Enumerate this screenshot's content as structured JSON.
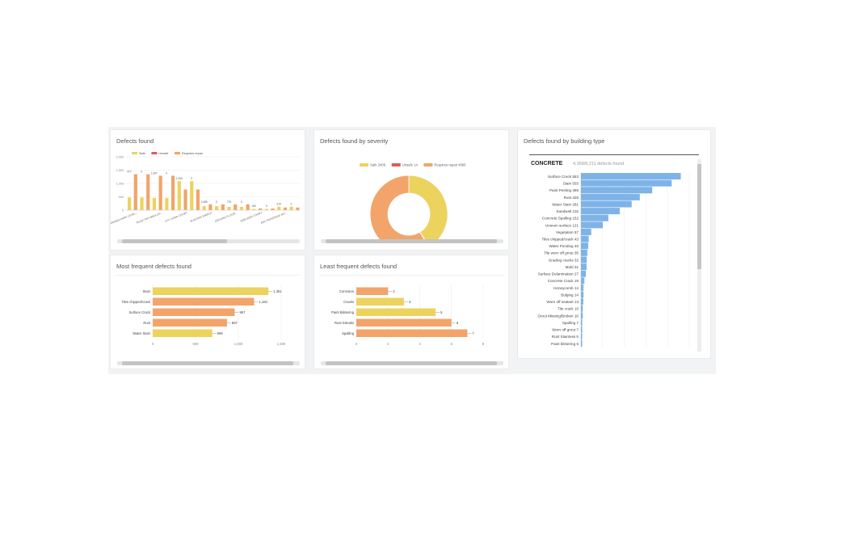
{
  "cards": {
    "defects": {
      "title": "Defects found",
      "legend": [
        "Safe",
        "Unsafe",
        "Requires repair"
      ],
      "chart_data": {
        "type": "bar",
        "title": "Defects found",
        "legend_position": "top",
        "ylim": [
          0,
          2000
        ],
        "yticks": [
          "2,000",
          "1,500",
          "1,000",
          "500",
          "0"
        ],
        "categories": [
          "VIRGINIA PARK LEVEL...",
          "ROOFTOP AREA GA...",
          "KTC STAIR COURT",
          "BUILDING B/WEST",
          "GROUND FLOOR...",
          "ADELAIDE COURT",
          "AMC RIVERSIDE MO..."
        ],
        "series": [
          {
            "name": "Safe",
            "color": "#ecd35d",
            "values": [
              477,
              460,
              1089,
              150,
              124,
              43,
              129
            ]
          },
          {
            "name": "Unsafe",
            "color": "#de5a5a",
            "values": [
              0,
              0,
              0,
              0,
              0,
              0,
              0
            ]
          },
          {
            "name": "Requires repair",
            "color": "#f2a46a",
            "values": [
              1347,
              1290,
              775,
              214,
              218,
              62,
              97
            ]
          }
        ],
        "data_labels": [
          "477",
          "0",
          "1,347",
          "0",
          "1,290",
          "0",
          "1,089",
          "0",
          "775",
          "0",
          "150",
          "0",
          "214",
          "0",
          "124",
          "0",
          "218",
          "0",
          "43",
          "0",
          "62",
          "0",
          "129",
          "0",
          "97",
          "0"
        ]
      }
    },
    "severity": {
      "title": "Defects found by severity",
      "legend": [
        "Safe 3406",
        "Unsafe 14",
        "Requires repair 4865"
      ],
      "chart_data": {
        "type": "pie",
        "title": "Defects found by severity",
        "legend_position": "top",
        "categories": [
          "Safe",
          "Unsafe",
          "Requires repair"
        ],
        "values": [
          3406,
          14,
          4865
        ],
        "colors": [
          "#ecd35d",
          "#de5a5a",
          "#f2a46a"
        ]
      }
    },
    "building": {
      "title": "Defects found by building type",
      "type_name": "CONCRETE",
      "subtitle": "4,368/8,211 defects found",
      "chart_data": {
        "type": "bar",
        "orientation": "horizontal",
        "title": "Defects found by building type",
        "color": "#7eb3e8",
        "categories": [
          "Surface Crack 553",
          "Stain 503",
          "Paint Peeling 395",
          "Rust 326",
          "Water Stain 281",
          "Sandwall 215",
          "Concrete Spalling 152",
          "Uneven surface 121",
          "Vegetation 57",
          "Tiles chipped/crack 43",
          "Water Ponding 40",
          "Tile worn off grout 35",
          "Grading cracks 32",
          "Mold 31",
          "Surface Delamination 27",
          "Concrete Crack 19",
          "Honeycomb 14",
          "Bulging 14",
          "Worn off sealant 13",
          "Tile crack 10",
          "Grout Missing/Broken 10",
          "Spalling 7",
          "Worn off grout 7",
          "Rust Stainless 5",
          "Paint blistering 5"
        ],
        "values": [
          553,
          503,
          395,
          326,
          281,
          215,
          152,
          121,
          57,
          43,
          40,
          35,
          32,
          31,
          27,
          19,
          14,
          14,
          13,
          10,
          10,
          7,
          7,
          5,
          5
        ],
        "xlim": [
          0,
          600
        ]
      }
    },
    "most": {
      "title": "Most frequent defects found",
      "chart_data": {
        "type": "bar",
        "orientation": "horizontal",
        "title": "Most frequent defects found",
        "categories": [
          "Stain",
          "Tiles chipped/crack",
          "Surface Crack",
          "Rust",
          "Water Stain"
        ],
        "values": [
          1351,
          1183,
          957,
          867,
          695
        ],
        "data_labels": [
          "1,351",
          "1,183",
          "957",
          "867",
          "695"
        ],
        "colors": [
          "#ecd35d",
          "#f2a46a",
          "#f2a46a",
          "#f2a46a",
          "#ecd35d"
        ],
        "xlim": [
          0,
          1500
        ],
        "xticks": [
          "0",
          "500",
          "1,000",
          "1,500"
        ]
      }
    },
    "least": {
      "title": "Least frequent defects found",
      "chart_data": {
        "type": "bar",
        "orientation": "horizontal",
        "title": "Least frequent defects found",
        "categories": [
          "Corrosion",
          "Cracks",
          "Paint Blistering",
          "Rust Streaks",
          "Spalling"
        ],
        "values": [
          2,
          3,
          5,
          6,
          7
        ],
        "data_labels": [
          "2",
          "3",
          "5",
          "6",
          "7"
        ],
        "colors": [
          "#f2a46a",
          "#ecd35d",
          "#ecd35d",
          "#f2a46a",
          "#f2a46a"
        ],
        "xlim": [
          0,
          8
        ],
        "xticks": [
          "0",
          "2",
          "4",
          "6",
          "8"
        ]
      }
    }
  }
}
